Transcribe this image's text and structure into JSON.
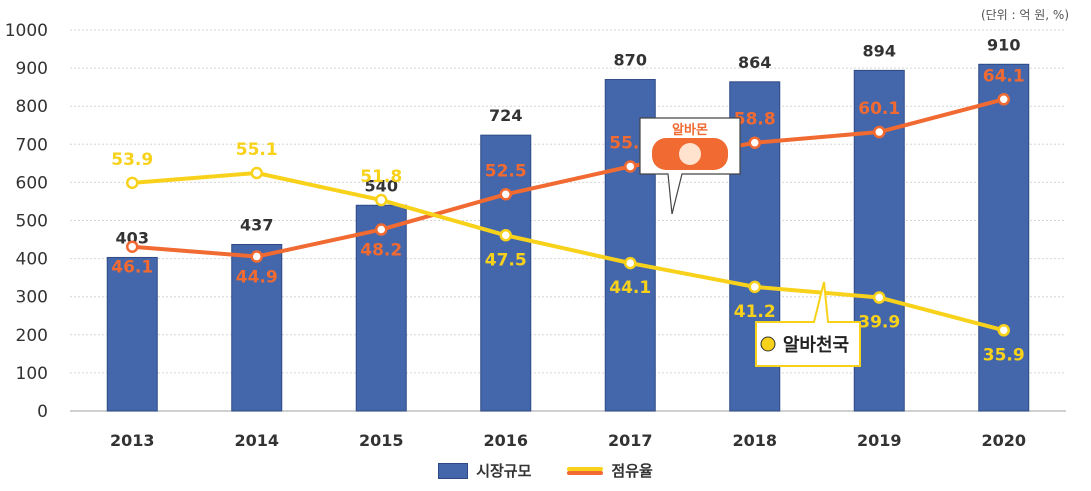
{
  "unit_note": "(단위 : 억 원, %)",
  "colors": {
    "bar": "#4466aa",
    "bar_stroke": "#2e4a86",
    "albamon": "#f06a32",
    "alba_heaven": "#f8d21a",
    "grid": "#d6d6d6",
    "axis_text": "#333333"
  },
  "legend": {
    "bar_label": "시장규모",
    "line_label": "점유율"
  },
  "callouts": {
    "albamon": "알바몬",
    "alba_heaven": "알바천국"
  },
  "chart_data": {
    "type": "bar",
    "categories": [
      "2013",
      "2014",
      "2015",
      "2016",
      "2017",
      "2018",
      "2019",
      "2020"
    ],
    "ylim": [
      0,
      1000
    ],
    "yticks": [
      0,
      100,
      200,
      300,
      400,
      500,
      600,
      700,
      800,
      900,
      1000
    ],
    "grid": true,
    "legend_position": "bottom",
    "series": [
      {
        "name": "시장규모",
        "type": "bar",
        "values": [
          403,
          437,
          540,
          724,
          870,
          864,
          894,
          910
        ]
      },
      {
        "name": "알바몬",
        "type": "line",
        "values": [
          46.1,
          44.9,
          48.2,
          52.5,
          55.9,
          58.8,
          60.1,
          64.1
        ]
      },
      {
        "name": "알바천국",
        "type": "line",
        "values": [
          53.9,
          55.1,
          51.8,
          47.5,
          44.1,
          41.2,
          39.9,
          35.9
        ]
      }
    ]
  }
}
